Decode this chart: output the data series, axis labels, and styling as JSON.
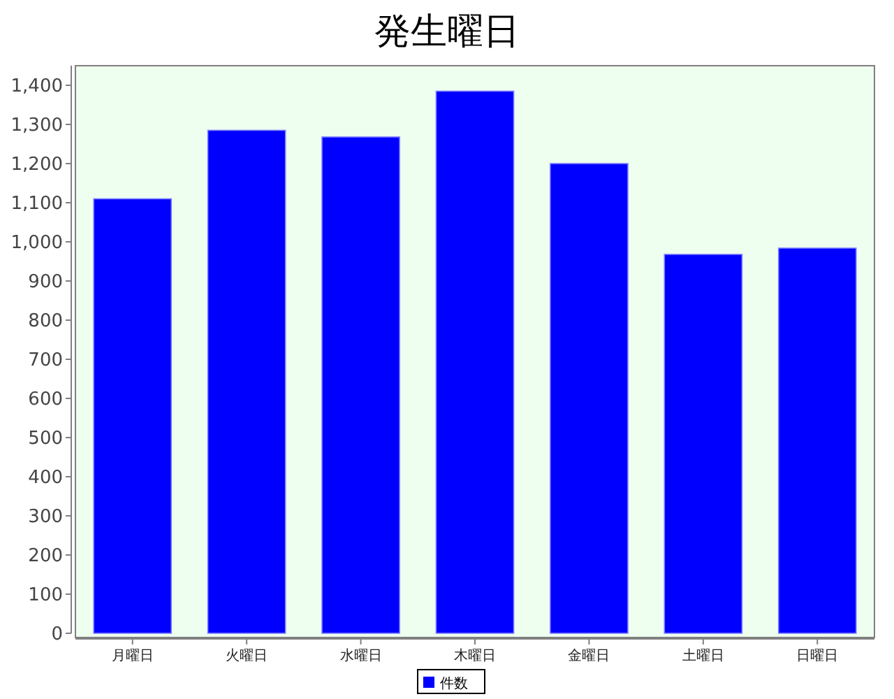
{
  "chart_data": {
    "type": "bar",
    "title": "発生曜日",
    "categories": [
      "月曜日",
      "火曜日",
      "水曜日",
      "木曜日",
      "金曜日",
      "土曜日",
      "日曜日"
    ],
    "series": [
      {
        "name": "件数",
        "color": "#0000ff",
        "values": [
          1110,
          1285,
          1268,
          1385,
          1200,
          968,
          984
        ]
      }
    ],
    "ylim": [
      0,
      1450
    ],
    "yticks": [
      0,
      100,
      200,
      300,
      400,
      500,
      600,
      700,
      800,
      900,
      {
        "value": 1000,
        "label": "1,000"
      },
      {
        "value": 1100,
        "label": "1,100"
      },
      {
        "value": 1200,
        "label": "1,200"
      },
      {
        "value": 1300,
        "label": "1,300"
      },
      {
        "value": 1400,
        "label": "1,400"
      }
    ],
    "legend": "bottom",
    "grid": false
  }
}
